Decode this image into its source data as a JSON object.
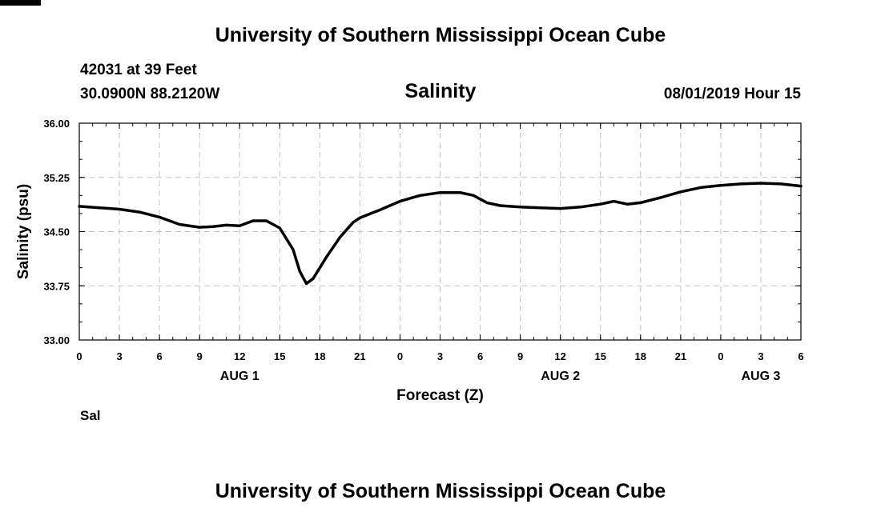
{
  "header": {
    "title": "University of Southern Mississippi Ocean Cube",
    "station": "42031 at 39 Feet",
    "coords": "30.0900N 88.2120W",
    "variable": "Salinity",
    "datetime": "08/01/2019 Hour 15"
  },
  "footer": {
    "title": "University of Southern Mississippi Ocean Cube"
  },
  "legend": {
    "label": "Sal",
    "color": "#000000"
  },
  "chart_data": {
    "type": "line",
    "title": "Salinity",
    "xlabel": "Forecast (Z)",
    "ylabel": "Salinity (psu)",
    "ylim": [
      33.0,
      36.0
    ],
    "xlim": [
      0,
      54
    ],
    "yticks": [
      "33.00",
      "33.75",
      "34.50",
      "35.25",
      "36.00"
    ],
    "xticks": [
      "0",
      "3",
      "6",
      "9",
      "12",
      "15",
      "18",
      "21",
      "0",
      "3",
      "6",
      "9",
      "12",
      "15",
      "18",
      "21",
      "0",
      "3",
      "6"
    ],
    "date_labels": [
      {
        "label": "AUG 1",
        "at_hour": 12
      },
      {
        "label": "AUG 2",
        "at_hour": 36
      },
      {
        "label": "AUG 3",
        "at_hour": 51
      }
    ],
    "grid": true,
    "legend_position": "bottom-left",
    "series": [
      {
        "name": "Sal",
        "color": "#000000",
        "x": [
          0,
          1.5,
          3,
          4.5,
          6,
          7.5,
          9,
          10,
          11,
          12,
          13,
          14,
          15,
          16,
          16.5,
          17,
          17.5,
          18.5,
          19.5,
          20.5,
          21,
          22.5,
          24,
          25.5,
          27,
          28.5,
          29.5,
          30.5,
          31.5,
          33,
          34.5,
          36,
          37.5,
          39,
          40,
          41,
          42,
          43.5,
          45,
          46.5,
          48,
          49.5,
          51,
          52.5,
          54
        ],
        "y": [
          34.85,
          34.83,
          34.81,
          34.77,
          34.7,
          34.6,
          34.56,
          34.57,
          34.59,
          34.58,
          34.65,
          34.65,
          34.55,
          34.25,
          33.95,
          33.78,
          33.85,
          34.15,
          34.42,
          34.63,
          34.69,
          34.8,
          34.92,
          35.0,
          35.04,
          35.04,
          35.0,
          34.9,
          34.86,
          34.84,
          34.83,
          34.82,
          34.84,
          34.88,
          34.92,
          34.88,
          34.9,
          34.97,
          35.05,
          35.11,
          35.14,
          35.16,
          35.17,
          35.16,
          35.13
        ]
      }
    ]
  }
}
